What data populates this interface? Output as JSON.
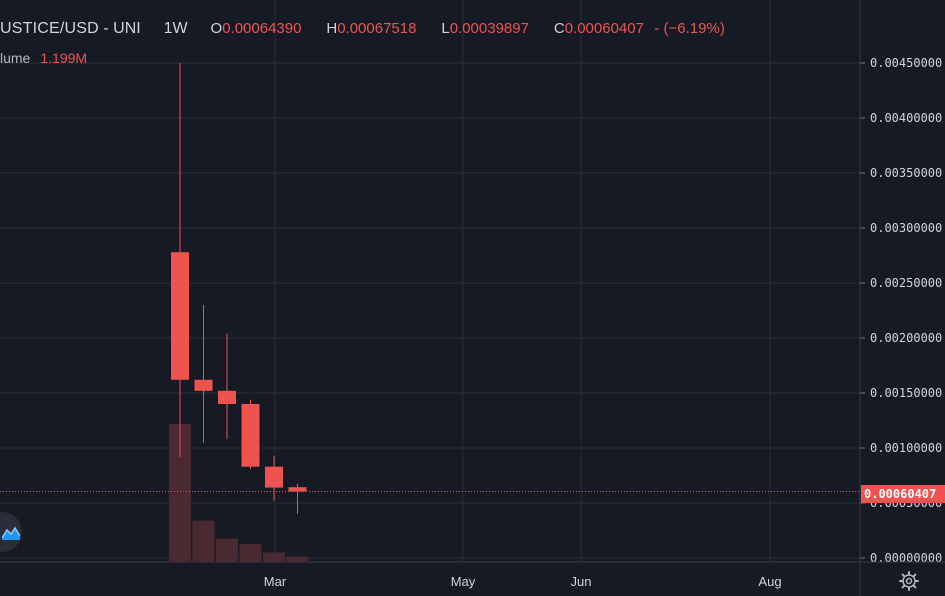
{
  "header": {
    "symbol": "USTICE/USD",
    "exchange": "UNI",
    "separator": "-",
    "interval": "1W",
    "open_label": "O",
    "open_value": "0.00064390",
    "high_label": "H",
    "high_value": "0.00067518",
    "low_label": "L",
    "low_value": "0.00039897",
    "close_label": "C",
    "close_value": "0.00060407",
    "change": "- (−6.19%)"
  },
  "volume": {
    "label": "lume",
    "value": "1.199M"
  },
  "last_price_label": "0.00060407",
  "colors": {
    "background": "#161a25",
    "grid": "#2a2e39",
    "down": "#ef5350",
    "volume_down": "#4a2a30",
    "axis_text": "#d1d4dc",
    "nav_button": "#2a2e39",
    "nav_icon": "#2196f3"
  },
  "icons": {
    "nav": "chart-navigation-icon",
    "settings": "gear-icon"
  },
  "chart_data": {
    "type": "candlestick",
    "interval": "1W",
    "y_axis": {
      "ticks": [
        "0.00450000",
        "0.00400000",
        "0.00350000",
        "0.00300000",
        "0.00250000",
        "0.00200000",
        "0.00150000",
        "0.00100000",
        "0.00050000",
        "0.00000000"
      ],
      "ylim": [
        0,
        0.0045
      ]
    },
    "x_axis": {
      "ticks": [
        "Mar",
        "May",
        "Jun",
        "Aug"
      ]
    },
    "candles": [
      {
        "open": 0.00278,
        "high": 0.0045,
        "low": 0.00092,
        "close": 0.00162
      },
      {
        "open": 0.00162,
        "high": 0.0023,
        "low": 0.00105,
        "close": 0.00152
      },
      {
        "open": 0.00152,
        "high": 0.00204,
        "low": 0.00108,
        "close": 0.0014
      },
      {
        "open": 0.0014,
        "high": 0.00144,
        "low": 0.00081,
        "close": 0.00083
      },
      {
        "open": 0.00083,
        "high": 0.00093,
        "low": 0.00052,
        "close": 0.00064
      },
      {
        "open": 0.0006439,
        "high": 0.00067518,
        "low": 0.00039897,
        "close": 0.00060407
      }
    ],
    "volumes_relative": [
      1.0,
      0.3,
      0.17,
      0.13,
      0.07,
      0.04
    ],
    "last_price": 0.00060407
  }
}
